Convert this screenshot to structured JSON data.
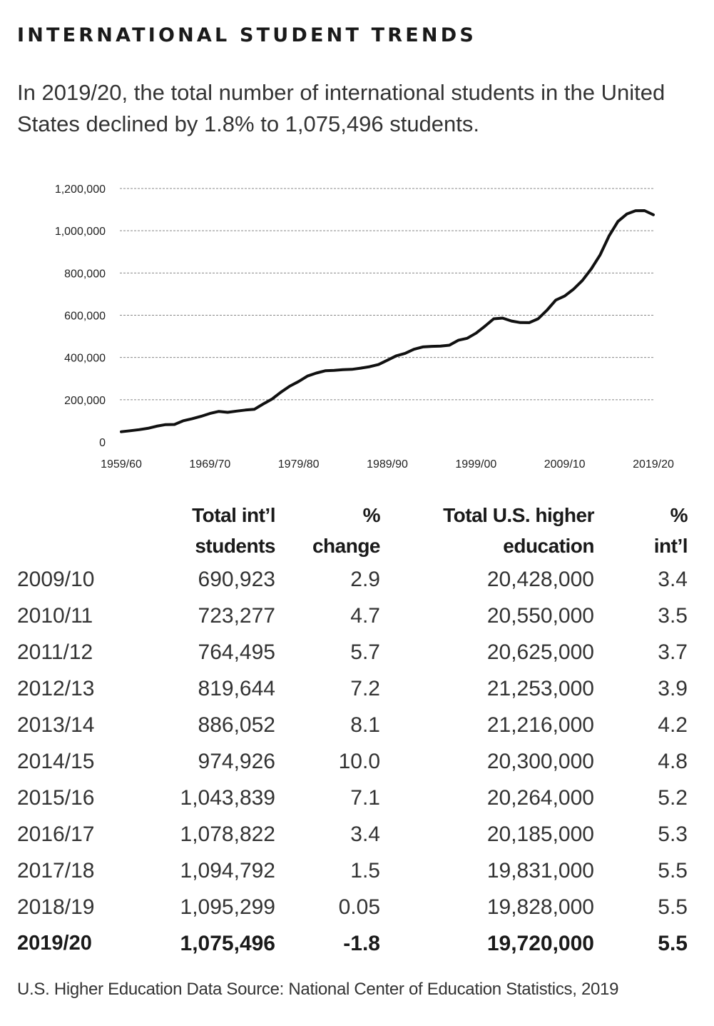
{
  "heading": "INTERNATIONAL STUDENT TRENDS",
  "subtitle": "In 2019/20, the total number of international students in the United States declined by 1.8% to 1,075,496 students.",
  "chart_data": {
    "type": "line",
    "title": "",
    "xlabel": "",
    "ylabel": "",
    "ylim": [
      0,
      1200000
    ],
    "grid": true,
    "y_ticks": [
      "0",
      "200,000",
      "400,000",
      "600,000",
      "800,000",
      "1,000,000",
      "1,200,000"
    ],
    "y_tick_values": [
      0,
      200000,
      400000,
      600000,
      800000,
      1000000,
      1200000
    ],
    "x_tick_labels": [
      "1959/60",
      "1969/70",
      "1979/80",
      "1989/90",
      "1999/00",
      "2009/10",
      "2019/20"
    ],
    "x_tick_values": [
      1959,
      1969,
      1979,
      1989,
      1999,
      2009,
      2019
    ],
    "xlim": [
      1959,
      2019
    ],
    "series": [
      {
        "x": [
          1959,
          1960,
          1961,
          1962,
          1963,
          1964,
          1965,
          1966,
          1967,
          1968,
          1969,
          1970,
          1971,
          1972,
          1973,
          1974,
          1975,
          1976,
          1977,
          1978,
          1979,
          1980,
          1981,
          1982,
          1983,
          1984,
          1985,
          1986,
          1987,
          1988,
          1989,
          1990,
          1991,
          1992,
          1993,
          1994,
          1995,
          1996,
          1997,
          1998,
          1999,
          2000,
          2001,
          2002,
          2003,
          2004,
          2005,
          2006,
          2007,
          2008,
          2009,
          2010,
          2011,
          2012,
          2013,
          2014,
          2015,
          2016,
          2017,
          2018,
          2019
        ],
        "values": [
          48486,
          53107,
          58086,
          64705,
          74814,
          82045,
          82709,
          100262,
          110315,
          121362,
          134959,
          144708,
          140126,
          146097,
          151066,
          154580,
          179344,
          203068,
          235509,
          263938,
          286343,
          311882,
          326299,
          336985,
          338894,
          342113,
          343777,
          349609,
          356187,
          366354,
          386851,
          407529,
          419585,
          438618,
          449749,
          452635,
          453787,
          457984,
          481280,
          490933,
          514723,
          547867,
          582996,
          586323,
          572509,
          565039,
          564766,
          582984,
          623805,
          671616,
          690923,
          723277,
          764495,
          819644,
          886052,
          974926,
          1043839,
          1078822,
          1094792,
          1095299,
          1075496
        ]
      }
    ]
  },
  "table": {
    "headers": [
      "",
      "Total int’l students",
      "% change",
      "Total U.S. higher education",
      "% int’l"
    ],
    "rows": [
      [
        "2009/10",
        "690,923",
        "2.9",
        "20,428,000",
        "3.4"
      ],
      [
        "2010/11",
        "723,277",
        "4.7",
        "20,550,000",
        "3.5"
      ],
      [
        "2011/12",
        "764,495",
        "5.7",
        "20,625,000",
        "3.7"
      ],
      [
        "2012/13",
        "819,644",
        "7.2",
        "21,253,000",
        "3.9"
      ],
      [
        "2013/14",
        "886,052",
        "8.1",
        "21,216,000",
        "4.2"
      ],
      [
        "2014/15",
        "974,926",
        "10.0",
        "20,300,000",
        "4.8"
      ],
      [
        "2015/16",
        "1,043,839",
        "7.1",
        "20,264,000",
        "5.2"
      ],
      [
        "2016/17",
        "1,078,822",
        "3.4",
        "20,185,000",
        "5.3"
      ],
      [
        "2017/18",
        "1,094,792",
        "1.5",
        "19,831,000",
        "5.5"
      ],
      [
        "2018/19",
        "1,095,299",
        "0.05",
        "19,828,000",
        "5.5"
      ],
      [
        "2019/20",
        "1,075,496",
        "-1.8",
        "19,720,000",
        "5.5"
      ]
    ],
    "bold_row_index": 10
  },
  "source": "U.S. Higher Education Data Source:  National Center of Education Statistics, 2019",
  "colors": {
    "line": "#111111",
    "grid": "#888888",
    "text": "#333333"
  }
}
